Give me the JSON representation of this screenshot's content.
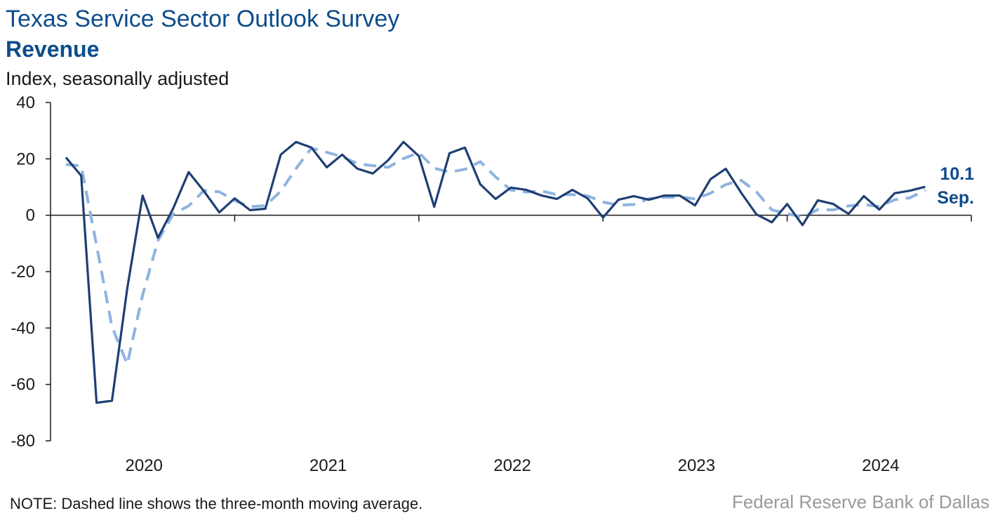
{
  "header": {
    "title": "Texas Service Sector Outlook Survey",
    "subtitle": "Revenue",
    "unit_label": "Index, seasonally adjusted"
  },
  "footer": {
    "note": "NOTE: Dashed line shows the three-month moving average.",
    "source": "Federal Reserve Bank of Dallas"
  },
  "colors": {
    "series_main": "#1f3f73",
    "series_avg": "#8eb3e0",
    "label": "#0d4c8b",
    "axis": "#1a1a1a"
  },
  "chart_data": {
    "type": "line",
    "title": "Revenue",
    "ylabel": "Index, seasonally adjusted",
    "ylim": [
      -80,
      40
    ],
    "yticks": [
      40,
      20,
      0,
      -20,
      -40,
      -60,
      -80
    ],
    "ytick_labels": [
      "40",
      "20",
      "0",
      "-20",
      "-40",
      "-60",
      "-80"
    ],
    "xlim": [
      "2019-12",
      "2024-12"
    ],
    "xtick_labels": [
      {
        "label": "2020",
        "month": "2020-06"
      },
      {
        "label": "2021",
        "month": "2021-06"
      },
      {
        "label": "2022",
        "month": "2022-06"
      },
      {
        "label": "2023",
        "month": "2023-06"
      },
      {
        "label": "2024",
        "month": "2024-06"
      }
    ],
    "year_boundaries": [
      "2020-12",
      "2021-12",
      "2022-12",
      "2023-12"
    ],
    "grid": false,
    "end_label": {
      "value": "10.1",
      "month": "Sep."
    },
    "series": [
      {
        "style": "solid",
        "x": [
          "2020-01",
          "2020-02",
          "2020-03",
          "2020-04",
          "2020-05",
          "2020-06",
          "2020-07",
          "2020-08",
          "2020-09",
          "2020-10",
          "2020-11",
          "2020-12",
          "2021-01",
          "2021-02",
          "2021-03",
          "2021-04",
          "2021-05",
          "2021-06",
          "2021-07",
          "2021-08",
          "2021-09",
          "2021-10",
          "2021-11",
          "2021-12",
          "2022-01",
          "2022-02",
          "2022-03",
          "2022-04",
          "2022-05",
          "2022-06",
          "2022-07",
          "2022-08",
          "2022-09",
          "2022-10",
          "2022-11",
          "2022-12",
          "2023-01",
          "2023-02",
          "2023-03",
          "2023-04",
          "2023-05",
          "2023-06",
          "2023-07",
          "2023-08",
          "2023-09",
          "2023-10",
          "2023-11",
          "2023-12",
          "2024-01",
          "2024-02",
          "2024-03",
          "2024-04",
          "2024-05",
          "2024-06",
          "2024-07",
          "2024-08",
          "2024-09"
        ],
        "values": [
          20.5,
          14,
          -66.5,
          -65.8,
          -26,
          7,
          -8,
          2.5,
          15.3,
          8.5,
          1,
          6,
          1.8,
          2.3,
          21.5,
          26,
          24,
          17,
          21.5,
          16.5,
          14.8,
          19.5,
          26,
          21,
          3,
          22,
          24,
          11,
          5.8,
          9.8,
          9,
          7,
          5.8,
          9,
          6,
          -0.8,
          5.5,
          6.8,
          5.5,
          7,
          7,
          3.5,
          12.8,
          16.5,
          8,
          0.3,
          -2.5,
          4,
          -3.5,
          5.3,
          4,
          0.5,
          6.8,
          2,
          7.8,
          8.7,
          10.1
        ]
      },
      {
        "style": "dashed",
        "x": [
          "2020-01",
          "2020-02",
          "2020-03",
          "2020-04",
          "2020-05",
          "2020-06",
          "2020-07",
          "2020-08",
          "2020-09",
          "2020-10",
          "2020-11",
          "2020-12",
          "2021-01",
          "2021-02",
          "2021-03",
          "2021-04",
          "2021-05",
          "2021-06",
          "2021-07",
          "2021-08",
          "2021-09",
          "2021-10",
          "2021-11",
          "2021-12",
          "2022-01",
          "2022-02",
          "2022-03",
          "2022-04",
          "2022-05",
          "2022-06",
          "2022-07",
          "2022-08",
          "2022-09",
          "2022-10",
          "2022-11",
          "2022-12",
          "2023-01",
          "2023-02",
          "2023-03",
          "2023-04",
          "2023-05",
          "2023-06",
          "2023-07",
          "2023-08",
          "2023-09",
          "2023-10",
          "2023-11",
          "2023-12",
          "2024-01",
          "2024-02",
          "2024-03",
          "2024-04",
          "2024-05",
          "2024-06",
          "2024-07",
          "2024-08",
          "2024-09"
        ],
        "values": [
          18,
          17.5,
          -10.7,
          -39.5,
          -52.8,
          -28.3,
          -9,
          0.5,
          3.3,
          8.8,
          8.3,
          5.2,
          3,
          3.4,
          8.5,
          16.6,
          23.8,
          22.3,
          20.8,
          18.3,
          17.6,
          17,
          20.1,
          22.2,
          16.7,
          15.3,
          16.3,
          19,
          13.6,
          8.9,
          8.2,
          8.6,
          7.3,
          7.3,
          6.9,
          4.7,
          3.6,
          3.8,
          5.9,
          6.4,
          6.5,
          5.8,
          7.8,
          10.9,
          12.4,
          8.3,
          1.9,
          0.6,
          -0.7,
          2,
          1.9,
          3.3,
          3.8,
          3.1,
          5.5,
          6.2,
          8.9
        ]
      }
    ]
  }
}
